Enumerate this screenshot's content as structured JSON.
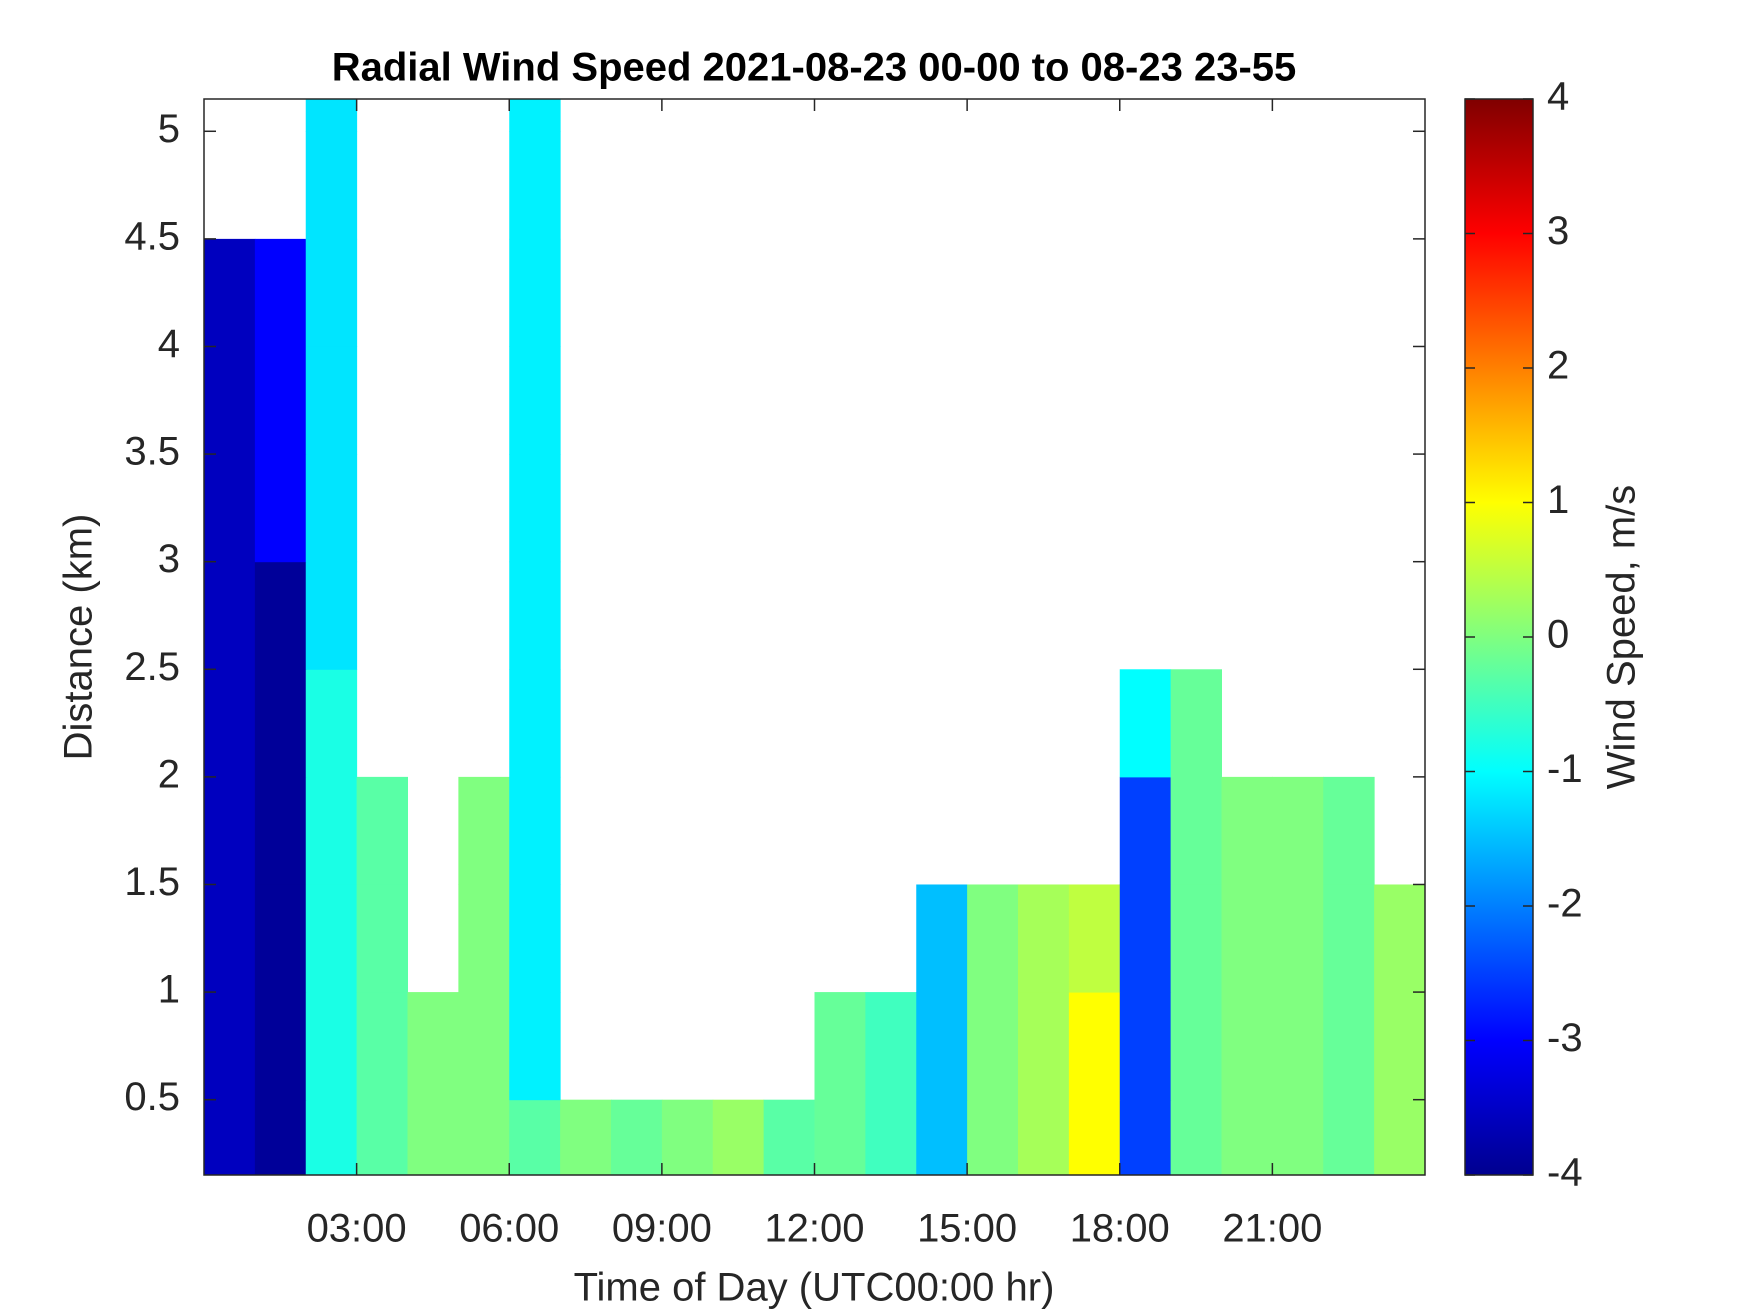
{
  "chart_data": {
    "type": "heatmap",
    "title": "Radial Wind Speed 2021-08-23 00-00 to 08-23 23-55",
    "x_label": "Time of Day (UTC00:00 hr)",
    "y_label": "Distance (km)",
    "colorbar_label": "Wind Speed, m/s",
    "colormap": "jet",
    "x_edges": [
      0,
      1,
      2,
      3,
      4,
      5,
      6,
      7,
      8,
      9,
      10,
      11,
      12,
      13,
      14,
      15,
      16,
      17,
      18,
      19,
      20,
      21,
      22,
      23,
      24
    ],
    "y_edges": [
      0.15,
      0.5,
      1.0,
      1.5,
      2.0,
      2.5,
      3.0,
      3.5,
      4.0,
      4.5,
      5.0,
      5.15
    ],
    "z": [
      [
        -3.5,
        -3.8,
        -0.8,
        -0.3,
        0,
        0,
        -0.3,
        0,
        -0.2,
        0,
        0.2,
        -0.3,
        -0.2,
        -0.5,
        -1.5,
        0,
        0.3,
        1.0,
        -2.5,
        -0.2,
        0,
        0,
        -0.2,
        0.2
      ],
      [
        -3.5,
        -3.8,
        -0.8,
        -0.3,
        0,
        0,
        -1.1,
        null,
        null,
        null,
        null,
        null,
        -0.2,
        -0.5,
        -1.5,
        0,
        0.3,
        1.0,
        -2.5,
        -0.2,
        0,
        0,
        -0.2,
        0.2
      ],
      [
        -3.5,
        -3.8,
        -0.8,
        -0.3,
        null,
        0,
        -1.1,
        null,
        null,
        null,
        null,
        null,
        null,
        null,
        -1.5,
        0,
        0.3,
        0.5,
        -2.5,
        -0.2,
        0,
        0,
        -0.2,
        0.2
      ],
      [
        -3.5,
        -3.8,
        -0.8,
        -0.3,
        null,
        0,
        -1.1,
        null,
        null,
        null,
        null,
        null,
        null,
        null,
        null,
        null,
        null,
        null,
        -2.5,
        -0.2,
        0,
        0,
        -0.2,
        null
      ],
      [
        -3.5,
        -3.8,
        -0.8,
        null,
        null,
        null,
        -1.1,
        null,
        null,
        null,
        null,
        null,
        null,
        null,
        null,
        null,
        null,
        null,
        -1.0,
        -0.2,
        null,
        null,
        null,
        null
      ],
      [
        -3.5,
        -3.8,
        -1.2,
        null,
        null,
        null,
        -1.1,
        null,
        null,
        null,
        null,
        null,
        null,
        null,
        null,
        null,
        null,
        null,
        null,
        null,
        null,
        null,
        null,
        null
      ],
      [
        -3.5,
        -3.0,
        -1.2,
        null,
        null,
        null,
        -1.1,
        null,
        null,
        null,
        null,
        null,
        null,
        null,
        null,
        null,
        null,
        null,
        null,
        null,
        null,
        null,
        null,
        null
      ],
      [
        -3.5,
        -3.0,
        -1.2,
        null,
        null,
        null,
        -1.1,
        null,
        null,
        null,
        null,
        null,
        null,
        null,
        null,
        null,
        null,
        null,
        null,
        null,
        null,
        null,
        null,
        null
      ],
      [
        -3.5,
        -3.0,
        -1.2,
        null,
        null,
        null,
        -1.1,
        null,
        null,
        null,
        null,
        null,
        null,
        null,
        null,
        null,
        null,
        null,
        null,
        null,
        null,
        null,
        null,
        null
      ],
      [
        null,
        null,
        -1.2,
        null,
        null,
        null,
        -1.1,
        null,
        null,
        null,
        null,
        null,
        null,
        null,
        null,
        null,
        null,
        null,
        null,
        null,
        null,
        null,
        null,
        null
      ],
      [
        null,
        null,
        -1.2,
        null,
        null,
        null,
        -1.1,
        null,
        null,
        null,
        null,
        null,
        null,
        null,
        null,
        null,
        null,
        null,
        null,
        null,
        null,
        null,
        null,
        null
      ]
    ],
    "xlim": [
      0,
      24
    ],
    "xticks": [
      {
        "value": 3,
        "label": "03:00"
      },
      {
        "value": 6,
        "label": "06:00"
      },
      {
        "value": 9,
        "label": "09:00"
      },
      {
        "value": 12,
        "label": "12:00"
      },
      {
        "value": 15,
        "label": "15:00"
      },
      {
        "value": 18,
        "label": "18:00"
      },
      {
        "value": 21,
        "label": "21:00"
      }
    ],
    "ylim": [
      0.15,
      5.15
    ],
    "yticks": [
      0.5,
      1,
      1.5,
      2,
      2.5,
      3,
      3.5,
      4,
      4.5,
      5
    ],
    "clim": [
      -4,
      4
    ],
    "cticks": [
      -4,
      -3,
      -2,
      -1,
      0,
      1,
      2,
      3,
      4
    ]
  }
}
